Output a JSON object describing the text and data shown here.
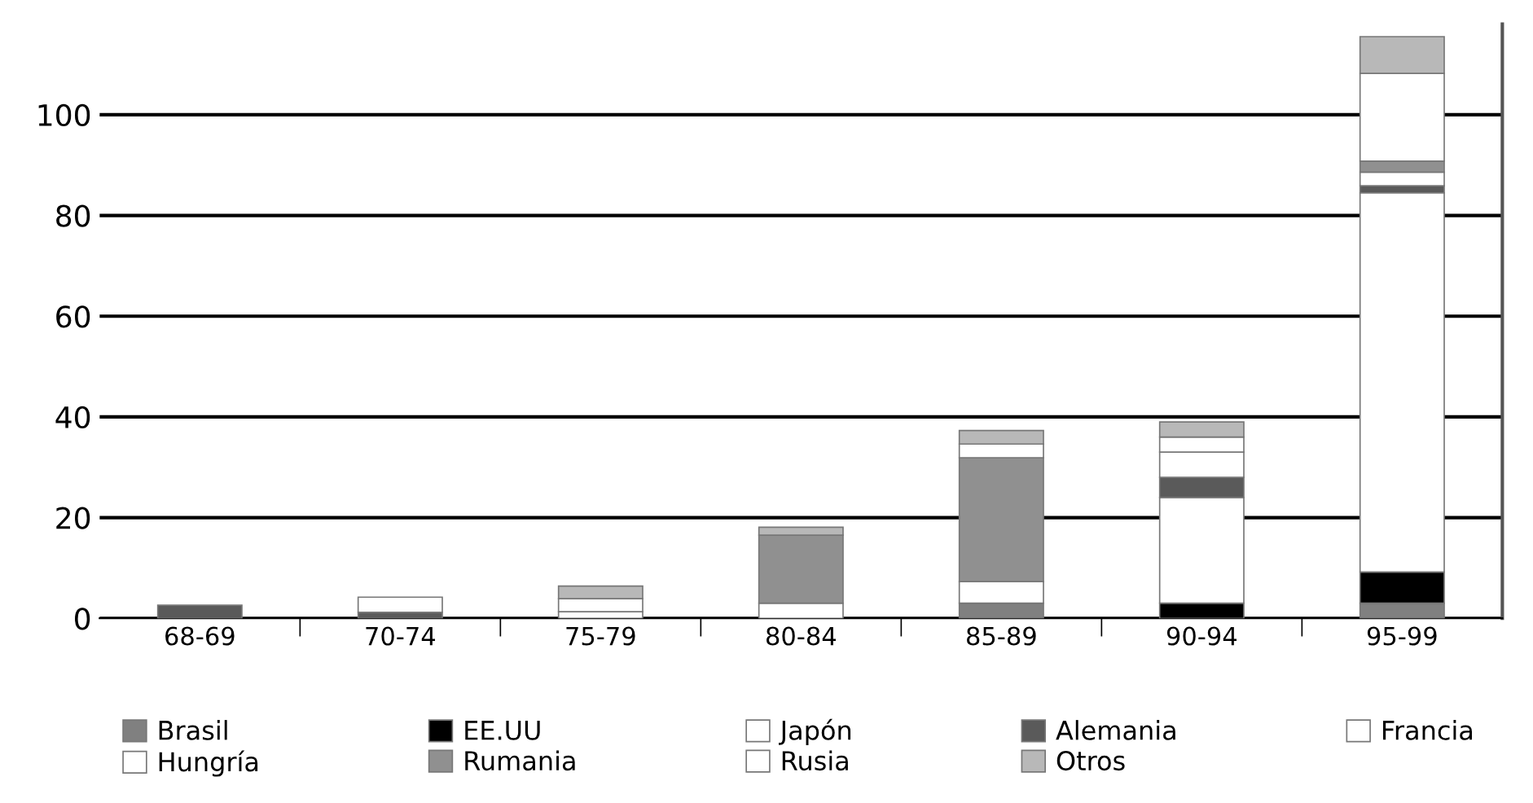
{
  "chart_data": {
    "type": "bar",
    "stacked": true,
    "categories": [
      "68-69",
      "70-74",
      "75-79",
      "80-84",
      "85-89",
      "90-94",
      "95-99"
    ],
    "series": [
      {
        "name": "Brasil",
        "color": "#808080",
        "values": [
          0,
          0,
          0,
          0,
          3,
          0,
          3
        ]
      },
      {
        "name": "EE.UU",
        "color": "#000000",
        "values": [
          0,
          0,
          0,
          0,
          0,
          3,
          6.2
        ]
      },
      {
        "name": "Japón",
        "color": "#ffffff",
        "values": [
          0,
          0,
          0,
          0,
          4.3,
          21,
          75.3
        ]
      },
      {
        "name": "Alemania",
        "color": "#5a5a5a",
        "values": [
          2.6,
          1.2,
          0,
          0,
          0,
          4,
          1.4
        ]
      },
      {
        "name": "Francia",
        "color": "#ffffff",
        "values": [
          0,
          3,
          1.3,
          0,
          0,
          5,
          0
        ]
      },
      {
        "name": "Hungría",
        "color": "#ffffff",
        "values": [
          0,
          0,
          2.6,
          3,
          0,
          0,
          2.7
        ]
      },
      {
        "name": "Rumania",
        "color": "#909090",
        "values": [
          0,
          0,
          0,
          13.5,
          24.6,
          0,
          2.2
        ]
      },
      {
        "name": "Rusia",
        "color": "#ffffff",
        "values": [
          0,
          0,
          0,
          0,
          2.7,
          3,
          17.4
        ]
      },
      {
        "name": "Otros",
        "color": "#b8b8b8",
        "values": [
          0,
          0,
          2.5,
          1.6,
          2.7,
          3,
          7.3
        ]
      }
    ],
    "ylim": [
      0,
      118
    ],
    "yticks": [
      0,
      20,
      40,
      60,
      80,
      100
    ],
    "grid": "y",
    "legend": "bottom"
  }
}
